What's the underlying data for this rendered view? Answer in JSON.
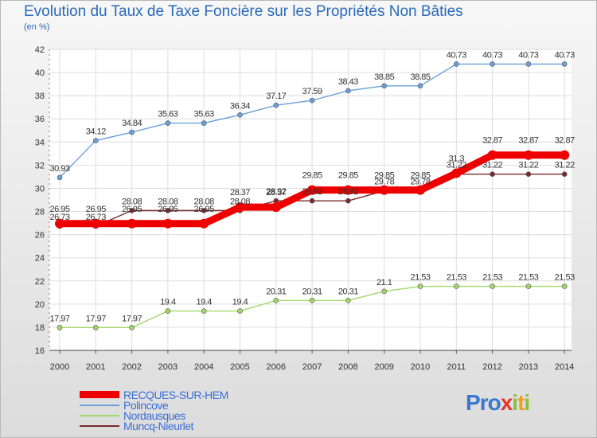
{
  "chart_data": {
    "type": "line",
    "title": "Evolution du Taux de Taxe Foncière sur les Propriétés Non Bâties",
    "subtitle": "(en %)",
    "x": [
      2000,
      2001,
      2002,
      2003,
      2004,
      2005,
      2006,
      2007,
      2008,
      2009,
      2010,
      2011,
      2012,
      2013,
      2014
    ],
    "ylim": [
      16,
      42
    ],
    "yticks": [
      16,
      18,
      20,
      22,
      24,
      26,
      28,
      30,
      32,
      34,
      36,
      38,
      40,
      42
    ],
    "grid": true,
    "legend": "bottom",
    "series": [
      {
        "name": "RECQUES-SUR-HEM",
        "color": "#ee0000",
        "values": [
          26.95,
          26.95,
          26.95,
          26.95,
          26.95,
          28.37,
          28.37,
          29.85,
          29.85,
          29.85,
          29.85,
          31.3,
          32.87,
          32.87,
          32.87
        ],
        "labels": [
          "26.95",
          "26.95",
          "26.95",
          "26.95",
          "26.95",
          "28.37",
          "28.37",
          "29.85",
          "29.85",
          "29.85",
          "29.85",
          "31.3",
          "32.87",
          "32.87",
          "32.87"
        ]
      },
      {
        "name": "Polincove",
        "color": "#6a9fd8",
        "values": [
          30.93,
          34.12,
          34.84,
          35.63,
          35.63,
          36.34,
          37.17,
          37.59,
          38.43,
          38.85,
          38.85,
          40.73,
          40.73,
          40.73,
          40.73
        ],
        "labels": [
          "30.93",
          "34.12",
          "34.84",
          "35.63",
          "35.63",
          "36.34",
          "37.17",
          "37.59",
          "38.43",
          "38.85",
          "38.85",
          "40.73",
          "40.73",
          "40.73",
          "40.73"
        ]
      },
      {
        "name": "Nordausques",
        "color": "#a2d86a",
        "values": [
          17.97,
          17.97,
          17.97,
          19.4,
          19.4,
          19.4,
          20.31,
          20.31,
          20.31,
          21.1,
          21.53,
          21.53,
          21.53,
          21.53,
          21.53
        ],
        "labels": [
          "17.97",
          "17.97",
          "17.97",
          "19.4",
          "19.4",
          "19.4",
          "20.31",
          "20.31",
          "20.31",
          "21.1",
          "21.53",
          "21.53",
          "21.53",
          "21.53",
          "21.53"
        ]
      },
      {
        "name": "Muncq-Nieurlet",
        "color": "#7a2a2a",
        "values": [
          26.73,
          26.73,
          28.08,
          28.08,
          28.08,
          28.08,
          28.92,
          28.92,
          28.92,
          29.78,
          29.78,
          31.22,
          31.22,
          31.22,
          31.22
        ],
        "labels": [
          "26.73",
          "26.73",
          "28.08",
          "28.08",
          "28.08",
          "28.08",
          "28.92",
          "28.92",
          "28.92",
          "29.78",
          "29.78",
          "31.22",
          "31.22",
          "31.22",
          "31.22"
        ]
      }
    ]
  },
  "logo": {
    "letters": [
      "P",
      "r",
      "o",
      "x",
      "i",
      "t",
      "i"
    ],
    "colors": [
      "#3a78d0",
      "#3a78d0",
      "#3a78d0",
      "#e8332a",
      "#88c040",
      "#f0a020",
      "#88c040"
    ]
  }
}
